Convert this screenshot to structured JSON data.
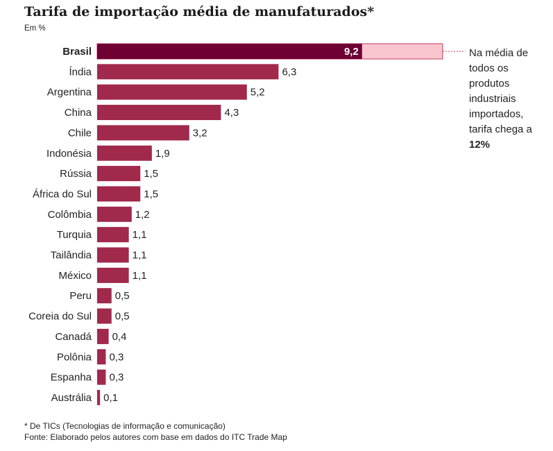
{
  "header": {
    "title": "Tarifa de importação média de manufaturados*",
    "subtitle": "Em %"
  },
  "annotation": {
    "text": "Na média de todos os produtos industriais importados, tarifa chega a",
    "highlight": "12%"
  },
  "footer": {
    "note": "* De TICs (Tecnologias de informação e comunicação)",
    "source": "Fonte: Elaborado pelos autores com base em dados do ITC Trade Map"
  },
  "chart_data": {
    "type": "bar",
    "orientation": "horizontal",
    "title": "Tarifa de importação média de manufaturados*",
    "unit": "Em %",
    "categories": [
      "Brasil",
      "Índia",
      "Argentina",
      "China",
      "Chile",
      "Indonésia",
      "Rússia",
      "África do Sul",
      "Colômbia",
      "Turquia",
      "Tailândia",
      "México",
      "Peru",
      "Coreia do Sul",
      "Canadá",
      "Polônia",
      "Espanha",
      "Austrália"
    ],
    "values": [
      9.2,
      6.3,
      5.2,
      4.3,
      3.2,
      1.9,
      1.5,
      1.5,
      1.2,
      1.1,
      1.1,
      1.1,
      0.5,
      0.5,
      0.4,
      0.3,
      0.3,
      0.1
    ],
    "value_labels": [
      "9,2",
      "6,3",
      "5,2",
      "4,3",
      "3,2",
      "1,9",
      "1,5",
      "1,5",
      "1,2",
      "1,1",
      "1,1",
      "1,1",
      "0,5",
      "0,5",
      "0,4",
      "0,3",
      "0,3",
      "0,1"
    ],
    "highlight_category": "Brasil",
    "reference_value": 12,
    "colors": {
      "bar": "#a0294c",
      "highlight_bar": "#6e0033",
      "reference_bar": "#f9c5cf",
      "reference_border": "#c0385d"
    }
  }
}
